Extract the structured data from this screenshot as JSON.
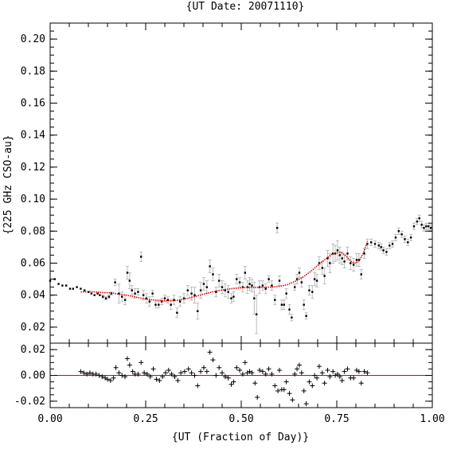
{
  "chart_data": {
    "type": "scatter",
    "title": "{UT Date: 20071110}",
    "xlabel": "{UT (Fraction of Day)}",
    "ylabel": "{225 GHz CSO-au}",
    "xlim": [
      0.0,
      1.0
    ],
    "x_ticks": [
      "0.00",
      "0.25",
      "0.50",
      "0.75",
      "1.00"
    ],
    "grid": false,
    "legend": "none",
    "colors": {
      "points": "#000000",
      "errorbars": "#bbbbbb",
      "fit": "#e00000"
    },
    "main_panel": {
      "ylim": [
        0.01,
        0.21
      ],
      "y_ticks": [
        "0.02",
        "0.04",
        "0.06",
        "0.08",
        "0.10",
        "0.12",
        "0.14",
        "0.16",
        "0.18",
        "0.20"
      ],
      "measurements": [
        [
          0.0,
          0.049,
          0.0
        ],
        [
          0.012,
          0.05,
          0.0
        ],
        [
          0.022,
          0.047,
          0.0
        ],
        [
          0.032,
          0.046,
          0.0
        ],
        [
          0.042,
          0.046,
          0.0
        ],
        [
          0.052,
          0.044,
          0.0
        ],
        [
          0.06,
          0.044,
          0.0
        ],
        [
          0.07,
          0.045,
          0.0
        ],
        [
          0.08,
          0.044,
          0.0
        ],
        [
          0.09,
          0.043,
          0.0
        ],
        [
          0.1,
          0.042,
          0.0
        ],
        [
          0.108,
          0.041,
          0.0
        ],
        [
          0.116,
          0.04,
          0.0
        ],
        [
          0.124,
          0.041,
          0.0
        ],
        [
          0.13,
          0.04,
          0.0
        ],
        [
          0.138,
          0.039,
          0.001
        ],
        [
          0.146,
          0.038,
          0.001
        ],
        [
          0.154,
          0.039,
          0.001
        ],
        [
          0.16,
          0.041,
          0.001
        ],
        [
          0.17,
          0.048,
          0.002
        ],
        [
          0.18,
          0.041,
          0.006
        ],
        [
          0.188,
          0.039,
          0.003
        ],
        [
          0.196,
          0.037,
          0.003
        ],
        [
          0.202,
          0.054,
          0.004
        ],
        [
          0.208,
          0.049,
          0.005
        ],
        [
          0.214,
          0.043,
          0.003
        ],
        [
          0.222,
          0.041,
          0.003
        ],
        [
          0.23,
          0.042,
          0.002
        ],
        [
          0.238,
          0.064,
          0.003
        ],
        [
          0.244,
          0.04,
          0.003
        ],
        [
          0.252,
          0.038,
          0.003
        ],
        [
          0.26,
          0.036,
          0.003
        ],
        [
          0.268,
          0.041,
          0.002
        ],
        [
          0.276,
          0.034,
          0.002
        ],
        [
          0.284,
          0.034,
          0.002
        ],
        [
          0.292,
          0.036,
          0.002
        ],
        [
          0.3,
          0.038,
          0.002
        ],
        [
          0.308,
          0.037,
          0.002
        ],
        [
          0.316,
          0.034,
          0.003
        ],
        [
          0.324,
          0.037,
          0.003
        ],
        [
          0.332,
          0.029,
          0.003
        ],
        [
          0.34,
          0.036,
          0.003
        ],
        [
          0.35,
          0.038,
          0.003
        ],
        [
          0.36,
          0.043,
          0.003
        ],
        [
          0.37,
          0.041,
          0.004
        ],
        [
          0.378,
          0.04,
          0.005
        ],
        [
          0.386,
          0.03,
          0.005
        ],
        [
          0.394,
          0.043,
          0.005
        ],
        [
          0.402,
          0.047,
          0.004
        ],
        [
          0.41,
          0.045,
          0.004
        ],
        [
          0.418,
          0.058,
          0.004
        ],
        [
          0.426,
          0.053,
          0.004
        ],
        [
          0.434,
          0.042,
          0.003
        ],
        [
          0.442,
          0.049,
          0.004
        ],
        [
          0.45,
          0.045,
          0.004
        ],
        [
          0.458,
          0.043,
          0.004
        ],
        [
          0.466,
          0.042,
          0.004
        ],
        [
          0.474,
          0.038,
          0.003
        ],
        [
          0.48,
          0.039,
          0.003
        ],
        [
          0.488,
          0.05,
          0.003
        ],
        [
          0.496,
          0.048,
          0.003
        ],
        [
          0.504,
          0.045,
          0.003
        ],
        [
          0.51,
          0.054,
          0.004
        ],
        [
          0.516,
          0.045,
          0.004
        ],
        [
          0.522,
          0.047,
          0.004
        ],
        [
          0.528,
          0.046,
          0.004
        ],
        [
          0.534,
          0.038,
          0.01
        ],
        [
          0.54,
          0.028,
          0.012
        ],
        [
          0.548,
          0.045,
          0.004
        ],
        [
          0.556,
          0.046,
          0.003
        ],
        [
          0.564,
          0.044,
          0.003
        ],
        [
          0.572,
          0.05,
          0.002
        ],
        [
          0.58,
          0.046,
          0.003
        ],
        [
          0.588,
          0.037,
          0.003
        ],
        [
          0.594,
          0.082,
          0.003
        ],
        [
          0.6,
          0.049,
          0.003
        ],
        [
          0.606,
          0.034,
          0.003
        ],
        [
          0.612,
          0.034,
          0.003
        ],
        [
          0.618,
          0.041,
          0.003
        ],
        [
          0.626,
          0.031,
          0.003
        ],
        [
          0.632,
          0.026,
          0.002
        ],
        [
          0.64,
          0.045,
          0.002
        ],
        [
          0.646,
          0.05,
          0.003
        ],
        [
          0.652,
          0.054,
          0.003
        ],
        [
          0.658,
          0.048,
          0.003
        ],
        [
          0.664,
          0.034,
          0.003
        ],
        [
          0.67,
          0.027,
          0.002
        ],
        [
          0.678,
          0.043,
          0.003
        ],
        [
          0.686,
          0.042,
          0.004
        ],
        [
          0.692,
          0.05,
          0.004
        ],
        [
          0.698,
          0.049,
          0.004
        ],
        [
          0.704,
          0.06,
          0.004
        ],
        [
          0.712,
          0.057,
          0.004
        ],
        [
          0.718,
          0.052,
          0.005
        ],
        [
          0.726,
          0.063,
          0.005
        ],
        [
          0.732,
          0.06,
          0.006
        ],
        [
          0.74,
          0.066,
          0.006
        ],
        [
          0.746,
          0.066,
          0.005
        ],
        [
          0.752,
          0.068,
          0.006
        ],
        [
          0.758,
          0.065,
          0.005
        ],
        [
          0.764,
          0.063,
          0.004
        ],
        [
          0.77,
          0.061,
          0.004
        ],
        [
          0.778,
          0.066,
          0.004
        ],
        [
          0.786,
          0.06,
          0.004
        ],
        [
          0.794,
          0.059,
          0.004
        ],
        [
          0.802,
          0.062,
          0.004
        ],
        [
          0.808,
          0.062,
          0.004
        ],
        [
          0.814,
          0.053,
          0.003
        ],
        [
          0.822,
          0.066,
          0.003
        ],
        [
          0.83,
          0.072,
          0.003
        ],
        [
          0.84,
          0.073,
          0.002
        ],
        [
          0.85,
          0.072,
          0.002
        ],
        [
          0.86,
          0.071,
          0.002
        ],
        [
          0.866,
          0.07,
          0.002
        ],
        [
          0.872,
          0.068,
          0.002
        ],
        [
          0.88,
          0.067,
          0.002
        ],
        [
          0.888,
          0.071,
          0.002
        ],
        [
          0.896,
          0.072,
          0.002
        ],
        [
          0.904,
          0.076,
          0.002
        ],
        [
          0.912,
          0.08,
          0.002
        ],
        [
          0.92,
          0.078,
          0.002
        ],
        [
          0.928,
          0.075,
          0.002
        ],
        [
          0.936,
          0.073,
          0.002
        ],
        [
          0.944,
          0.076,
          0.002
        ],
        [
          0.952,
          0.083,
          0.002
        ],
        [
          0.96,
          0.086,
          0.002
        ],
        [
          0.966,
          0.088,
          0.002
        ],
        [
          0.972,
          0.084,
          0.002
        ],
        [
          0.978,
          0.082,
          0.002
        ],
        [
          0.984,
          0.083,
          0.002
        ],
        [
          0.99,
          0.083,
          0.002
        ],
        [
          0.996,
          0.082,
          0.002
        ]
      ],
      "fit_curve": [
        [
          0.08,
          0.042
        ],
        [
          0.1,
          0.0422
        ],
        [
          0.12,
          0.042
        ],
        [
          0.14,
          0.0416
        ],
        [
          0.16,
          0.0415
        ],
        [
          0.18,
          0.0405
        ],
        [
          0.2,
          0.04
        ],
        [
          0.22,
          0.039
        ],
        [
          0.24,
          0.038
        ],
        [
          0.26,
          0.0372
        ],
        [
          0.28,
          0.0368
        ],
        [
          0.3,
          0.0365
        ],
        [
          0.32,
          0.0365
        ],
        [
          0.34,
          0.037
        ],
        [
          0.36,
          0.038
        ],
        [
          0.38,
          0.0392
        ],
        [
          0.4,
          0.0405
        ],
        [
          0.42,
          0.0418
        ],
        [
          0.44,
          0.0428
        ],
        [
          0.46,
          0.0436
        ],
        [
          0.48,
          0.0442
        ],
        [
          0.5,
          0.0446
        ],
        [
          0.52,
          0.0448
        ],
        [
          0.54,
          0.0449
        ],
        [
          0.56,
          0.0449
        ],
        [
          0.58,
          0.045
        ],
        [
          0.6,
          0.0455
        ],
        [
          0.62,
          0.0465
        ],
        [
          0.64,
          0.0485
        ],
        [
          0.66,
          0.051
        ],
        [
          0.68,
          0.0545
        ],
        [
          0.7,
          0.0585
        ],
        [
          0.72,
          0.0625
        ],
        [
          0.74,
          0.066
        ],
        [
          0.76,
          0.0668
        ],
        [
          0.77,
          0.0655
        ],
        [
          0.78,
          0.063
        ],
        [
          0.79,
          0.0605
        ],
        [
          0.8,
          0.06
        ],
        [
          0.81,
          0.062
        ],
        [
          0.82,
          0.0665
        ],
        [
          0.83,
          0.0735
        ]
      ]
    },
    "residual_panel": {
      "ylim": [
        -0.025,
        0.025
      ],
      "y_ticks": [
        "0.02",
        "0.00",
        "-0.02"
      ],
      "zero_line": 0.0,
      "residuals": [
        [
          0.08,
          0.003
        ],
        [
          0.088,
          0.002
        ],
        [
          0.096,
          0.001
        ],
        [
          0.104,
          0.002
        ],
        [
          0.112,
          0.001
        ],
        [
          0.12,
          0.001
        ],
        [
          0.128,
          0.0
        ],
        [
          0.136,
          -0.001
        ],
        [
          0.144,
          -0.002
        ],
        [
          0.15,
          -0.003
        ],
        [
          0.158,
          -0.004
        ],
        [
          0.166,
          -0.002
        ],
        [
          0.172,
          0.006
        ],
        [
          0.18,
          0.002
        ],
        [
          0.188,
          0.0
        ],
        [
          0.196,
          -0.001
        ],
        [
          0.202,
          0.013
        ],
        [
          0.208,
          0.008
        ],
        [
          0.216,
          0.003
        ],
        [
          0.222,
          0.001
        ],
        [
          0.23,
          0.001
        ],
        [
          0.238,
          0.01
        ],
        [
          0.246,
          0.002
        ],
        [
          0.254,
          0.001
        ],
        [
          0.262,
          -0.001
        ],
        [
          0.27,
          0.005
        ],
        [
          0.278,
          -0.003
        ],
        [
          0.286,
          -0.004
        ],
        [
          0.294,
          -0.001
        ],
        [
          0.302,
          0.002
        ],
        [
          0.31,
          0.004
        ],
        [
          0.318,
          0.001
        ],
        [
          0.326,
          -0.001
        ],
        [
          0.334,
          -0.004
        ],
        [
          0.342,
          0.002
        ],
        [
          0.352,
          0.003
        ],
        [
          0.362,
          0.005
        ],
        [
          0.37,
          0.002
        ],
        [
          0.378,
          0.0
        ],
        [
          0.386,
          -0.008
        ],
        [
          0.394,
          0.003
        ],
        [
          0.402,
          0.006
        ],
        [
          0.41,
          0.003
        ],
        [
          0.418,
          0.018
        ],
        [
          0.426,
          0.012
        ],
        [
          0.434,
          0.0
        ],
        [
          0.442,
          0.006
        ],
        [
          0.45,
          0.002
        ],
        [
          0.458,
          -0.001
        ],
        [
          0.466,
          -0.002
        ],
        [
          0.474,
          -0.007
        ],
        [
          0.48,
          -0.005
        ],
        [
          0.488,
          0.006
        ],
        [
          0.496,
          0.004
        ],
        [
          0.504,
          0.001
        ],
        [
          0.51,
          0.01
        ],
        [
          0.516,
          0.002
        ],
        [
          0.522,
          0.003
        ],
        [
          0.528,
          0.002
        ],
        [
          0.536,
          -0.006
        ],
        [
          0.542,
          -0.017
        ],
        [
          0.548,
          0.004
        ],
        [
          0.556,
          0.003
        ],
        [
          0.564,
          0.001
        ],
        [
          0.572,
          0.005
        ],
        [
          0.58,
          0.001
        ],
        [
          0.588,
          -0.008
        ],
        [
          0.596,
          -0.012
        ],
        [
          0.6,
          0.004
        ],
        [
          0.606,
          -0.011
        ],
        [
          0.612,
          -0.011
        ],
        [
          0.618,
          -0.005
        ],
        [
          0.626,
          -0.014
        ],
        [
          0.634,
          -0.019
        ],
        [
          0.64,
          0.001
        ],
        [
          0.646,
          0.005
        ],
        [
          0.652,
          0.008
        ],
        [
          0.658,
          0.002
        ],
        [
          0.664,
          -0.012
        ],
        [
          0.67,
          -0.022
        ],
        [
          0.678,
          -0.005
        ],
        [
          0.686,
          -0.008
        ],
        [
          0.692,
          0.0
        ],
        [
          0.698,
          -0.002
        ],
        [
          0.704,
          0.007
        ],
        [
          0.712,
          0.002
        ],
        [
          0.718,
          -0.006
        ],
        [
          0.726,
          0.004
        ],
        [
          0.732,
          -0.001
        ],
        [
          0.74,
          0.003
        ],
        [
          0.746,
          0.0
        ],
        [
          0.752,
          0.001
        ],
        [
          0.758,
          -0.001
        ],
        [
          0.764,
          -0.004
        ],
        [
          0.77,
          0.003
        ],
        [
          0.778,
          0.005
        ],
        [
          0.786,
          -0.002
        ],
        [
          0.794,
          -0.002
        ],
        [
          0.802,
          0.004
        ],
        [
          0.808,
          0.003
        ],
        [
          0.814,
          -0.006
        ],
        [
          0.822,
          0.003
        ],
        [
          0.83,
          0.002
        ]
      ]
    }
  }
}
